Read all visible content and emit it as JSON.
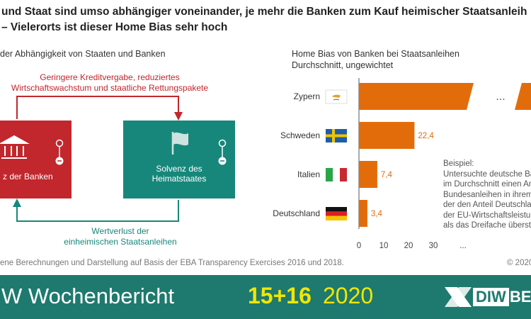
{
  "title": {
    "line1": "und Staat sind umso abhängiger voneinander, je mehr die Banken zum Kauf heimischer Staatsanleih",
    "line2": "– Vielerorts ist dieser Home Bias sehr hoch"
  },
  "left": {
    "heading": "der Abhängigkeit von Staaten und Banken",
    "top_arrow_label_line1": "Geringere Kreditvergabe, reduziertes",
    "top_arrow_label_line2": "Wirtschaftswachstum und staatliche Rettungspakete",
    "bank_box_label": "z der Banken",
    "state_box_label_line1": "Solvenz des",
    "state_box_label_line2": "Heimatstaates",
    "bottom_arrow_label_line1": "Wertverlust der",
    "bottom_arrow_label_line2": "einheimischen Staatsanleihen",
    "plus_sign": "+",
    "minus_sign": "−",
    "colors": {
      "red": "#c1272d",
      "teal": "#17877b"
    }
  },
  "source_note": "ene Berechnungen und Darstellung auf Basis der EBA Transparency Exercises 2016 und 2018.",
  "copyright": "© 2020",
  "example": {
    "line1": "Beispiel:",
    "line2": "Untersuchte deutsche Bank",
    "line3": "im Durchschnitt einen Ant",
    "line4": "Bundesanleihen in ihrem",
    "line5": "der den Anteil Deutschlan",
    "line6": "der EU-Wirtschaftsleistung",
    "line7": "als das Dreifache überste"
  },
  "chart_data": {
    "type": "bar",
    "orientation": "horizontal",
    "title": "Home Bias von Banken bei Staatsanleihen",
    "subtitle": "Durchschnitt, ungewichtet",
    "categories": [
      "Zypern",
      "Schweden",
      "Italien",
      "Deutschland"
    ],
    "values": [
      null,
      22.4,
      7.4,
      3.4
    ],
    "value_labels": [
      "",
      "22,4",
      "7,4",
      "3,4"
    ],
    "truncated_category": "Zypern",
    "x_ticks": [
      "0",
      "10",
      "20",
      "30",
      "..."
    ],
    "xlim": [
      0,
      30
    ],
    "grid": false,
    "bar_color": "#e36c0a",
    "break_symbol": "..."
  },
  "footer": {
    "brand": "W Wochenbericht",
    "issue_bold": "15+16",
    "issue_year": "2020",
    "logo_text": "DIW",
    "logo_tail": "BE",
    "bg_color": "#1e7a6e",
    "accent_color": "#f2e600"
  }
}
